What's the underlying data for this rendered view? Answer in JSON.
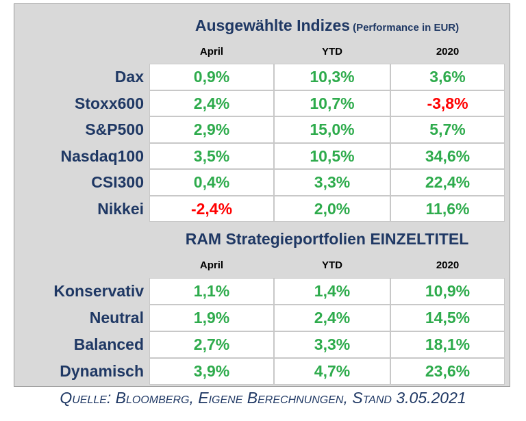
{
  "sections": [
    {
      "title": "Ausgewählte Indizes",
      "subtitle": "(Performance in EUR)",
      "columns": [
        "April",
        "YTD",
        "2020"
      ],
      "rows": [
        {
          "label": "Dax",
          "cells": [
            "0,9%",
            "10,3%",
            "3,6%"
          ]
        },
        {
          "label": "Stoxx600",
          "cells": [
            "2,4%",
            "10,7%",
            "-3,8%"
          ]
        },
        {
          "label": "S&P500",
          "cells": [
            "2,9%",
            "15,0%",
            "5,7%"
          ]
        },
        {
          "label": "Nasdaq100",
          "cells": [
            "3,5%",
            "10,5%",
            "34,6%"
          ]
        },
        {
          "label": "CSI300",
          "cells": [
            "0,4%",
            "3,3%",
            "22,4%"
          ]
        },
        {
          "label": "Nikkei",
          "cells": [
            "-2,4%",
            "2,0%",
            "11,6%"
          ]
        }
      ]
    },
    {
      "title": "RAM Strategieportfolien EINZELTITEL",
      "columns": [
        "April",
        "YTD",
        "2020"
      ],
      "rows": [
        {
          "label": "Konservativ",
          "cells": [
            "1,1%",
            "1,4%",
            "10,9%"
          ]
        },
        {
          "label": "Neutral",
          "cells": [
            "1,9%",
            "2,4%",
            "14,5%"
          ]
        },
        {
          "label": "Balanced",
          "cells": [
            "2,7%",
            "3,3%",
            "18,1%"
          ]
        },
        {
          "label": "Dynamisch",
          "cells": [
            "3,9%",
            "4,7%",
            "23,6%"
          ]
        }
      ]
    }
  ],
  "footer": "Quelle: Bloomberg, Eigene Berechnungen, Stand 3.05.2021"
}
